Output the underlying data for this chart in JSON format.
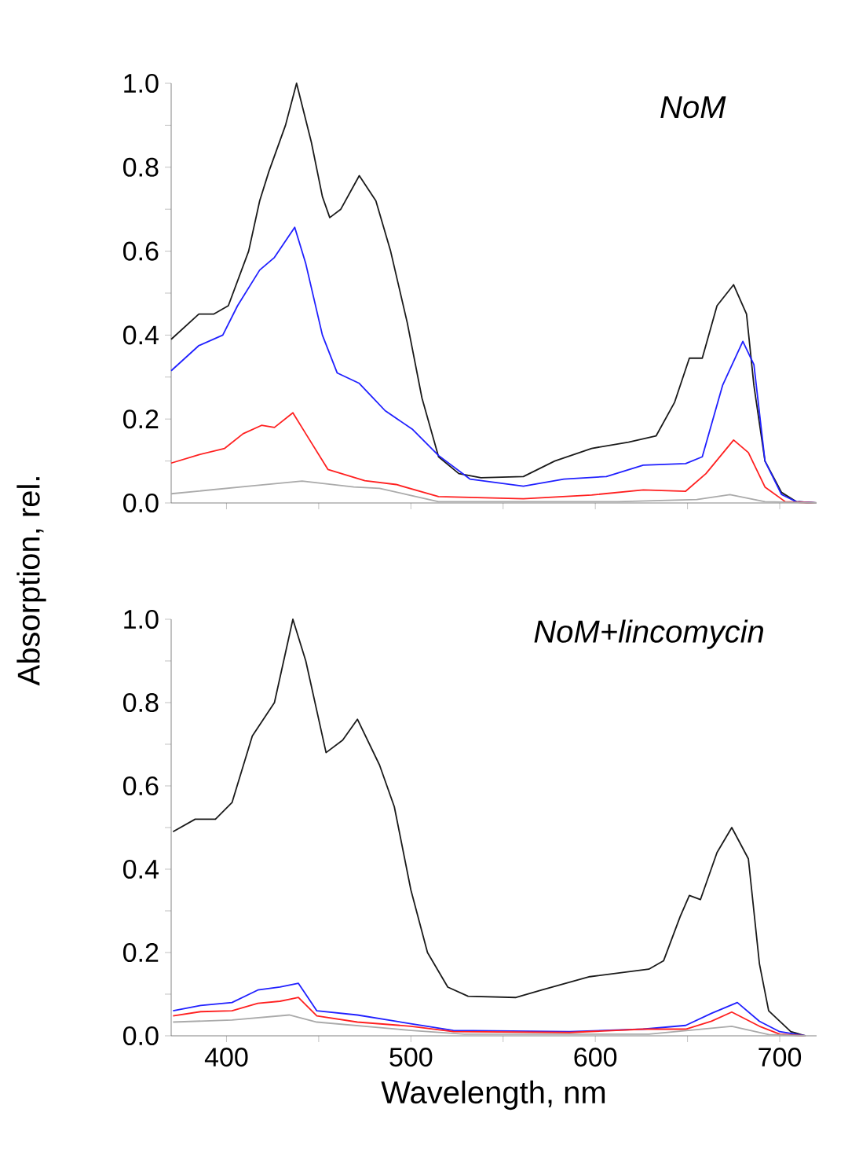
{
  "chart_data": [
    {
      "type": "line",
      "ylabel": "Absorption, rel.",
      "annotations": [
        "NoM"
      ],
      "tick_labels": "y",
      "xlim": [
        370,
        720
      ],
      "ylim": [
        0,
        1.0
      ],
      "xticks": [
        {
          "value": 400,
          "label": null
        },
        {
          "value": 450,
          "label": null
        },
        {
          "value": 500,
          "label": null
        },
        {
          "value": 550,
          "label": null
        },
        {
          "value": 600,
          "label": null
        },
        {
          "value": 650,
          "label": null
        },
        {
          "value": 700,
          "label": null
        }
      ],
      "yticks": [
        {
          "value": 0,
          "label": "0.0"
        },
        {
          "value": 0.1,
          "label": null
        },
        0.2,
        {
          "value": 0.3,
          "label": null
        },
        0.4,
        {
          "value": 0.5,
          "label": null
        },
        0.6,
        {
          "value": 0.7,
          "label": null
        },
        0.8,
        {
          "value": 0.9,
          "label": null
        },
        {
          "value": 1.0,
          "label": "1.0"
        }
      ],
      "series": [
        {
          "color": "#1a1a1a",
          "x": [
            370,
            385,
            393,
            401,
            412,
            418,
            423,
            432,
            438,
            446,
            452,
            456,
            462,
            472,
            481,
            489,
            498,
            506,
            515,
            526,
            538,
            561,
            578,
            598,
            618,
            633,
            643,
            651,
            658,
            666,
            675,
            682,
            686,
            692,
            701,
            709,
            720
          ],
          "values": [
            0.39,
            0.45,
            0.45,
            0.47,
            0.6,
            0.72,
            0.79,
            0.9,
            1.0,
            0.86,
            0.73,
            0.68,
            0.7,
            0.78,
            0.72,
            0.6,
            0.43,
            0.25,
            0.11,
            0.07,
            0.06,
            0.063,
            0.1,
            0.13,
            0.145,
            0.16,
            0.24,
            0.345,
            0.345,
            0.47,
            0.52,
            0.45,
            0.28,
            0.1,
            0.025,
            0.003,
            0
          ]
        },
        {
          "color": "#2020ff",
          "x": [
            370,
            385,
            398,
            406,
            418,
            426,
            437,
            443,
            452,
            460,
            472,
            486,
            501,
            515,
            532,
            561,
            583,
            606,
            626,
            649,
            658,
            669,
            680,
            686,
            692,
            701,
            709,
            720
          ],
          "values": [
            0.315,
            0.375,
            0.4,
            0.47,
            0.555,
            0.585,
            0.657,
            0.57,
            0.4,
            0.31,
            0.285,
            0.22,
            0.175,
            0.113,
            0.057,
            0.04,
            0.057,
            0.063,
            0.09,
            0.094,
            0.11,
            0.28,
            0.385,
            0.33,
            0.1,
            0.02,
            0.003,
            0
          ]
        },
        {
          "color": "#ff2020",
          "x": [
            370,
            385,
            399,
            409,
            419,
            426,
            436,
            443,
            455,
            475,
            492,
            515,
            561,
            598,
            626,
            649,
            660,
            675,
            683,
            692,
            703,
            720
          ],
          "values": [
            0.095,
            0.115,
            0.13,
            0.165,
            0.185,
            0.18,
            0.215,
            0.165,
            0.08,
            0.053,
            0.044,
            0.015,
            0.01,
            0.019,
            0.031,
            0.028,
            0.07,
            0.15,
            0.12,
            0.038,
            0.003,
            0
          ]
        },
        {
          "color": "#aaaaaa",
          "x": [
            370,
            412,
            441,
            455,
            469,
            483,
            498,
            515,
            612,
            655,
            673,
            692,
            720
          ],
          "values": [
            0.022,
            0.04,
            0.052,
            0.045,
            0.038,
            0.035,
            0.02,
            0.003,
            0.003,
            0.008,
            0.02,
            0.003,
            0
          ]
        }
      ]
    },
    {
      "type": "line",
      "xlabel": "Wavelength, nm",
      "annotations": [
        "NoM+lincomycin"
      ],
      "xlim": [
        370,
        720
      ],
      "ylim": [
        0,
        1.0
      ],
      "xticks": [
        400,
        {
          "value": 450,
          "label": null
        },
        500,
        {
          "value": 550,
          "label": null
        },
        600,
        {
          "value": 650,
          "label": null
        },
        700
      ],
      "yticks": [
        {
          "value": 0,
          "label": "0.0"
        },
        {
          "value": 0.1,
          "label": null
        },
        0.2,
        {
          "value": 0.3,
          "label": null
        },
        0.4,
        {
          "value": 0.5,
          "label": null
        },
        0.6,
        {
          "value": 0.7,
          "label": null
        },
        0.8,
        {
          "value": 0.9,
          "label": null
        },
        {
          "value": 1.0,
          "label": "1.0"
        }
      ],
      "series": [
        {
          "color": "#1a1a1a",
          "x": [
            371,
            383,
            394,
            403,
            414,
            426,
            436,
            443,
            454,
            463,
            471,
            483,
            491,
            500,
            509,
            520,
            531,
            557,
            571,
            597,
            629,
            637,
            646,
            651,
            657,
            666,
            674,
            683,
            689,
            694,
            706,
            714
          ],
          "values": [
            0.49,
            0.52,
            0.52,
            0.56,
            0.72,
            0.8,
            1.0,
            0.9,
            0.68,
            0.71,
            0.76,
            0.65,
            0.55,
            0.35,
            0.2,
            0.117,
            0.095,
            0.092,
            0.11,
            0.142,
            0.16,
            0.18,
            0.286,
            0.337,
            0.327,
            0.44,
            0.5,
            0.425,
            0.173,
            0.06,
            0.01,
            0
          ]
        },
        {
          "color": "#2020ff",
          "x": [
            371,
            386,
            403,
            417,
            429,
            439,
            449,
            471,
            500,
            523,
            586,
            626,
            649,
            663,
            677,
            689,
            700,
            714
          ],
          "values": [
            0.06,
            0.073,
            0.08,
            0.11,
            0.117,
            0.126,
            0.06,
            0.05,
            0.029,
            0.013,
            0.01,
            0.016,
            0.025,
            0.054,
            0.08,
            0.035,
            0.01,
            0
          ]
        },
        {
          "color": "#ff2020",
          "x": [
            371,
            386,
            403,
            417,
            429,
            439,
            449,
            471,
            500,
            523,
            586,
            626,
            649,
            663,
            674,
            689,
            700,
            714
          ],
          "values": [
            0.048,
            0.058,
            0.06,
            0.078,
            0.083,
            0.092,
            0.048,
            0.033,
            0.023,
            0.01,
            0.008,
            0.016,
            0.016,
            0.035,
            0.057,
            0.023,
            0.004,
            0
          ]
        },
        {
          "color": "#aaaaaa",
          "x": [
            371,
            403,
            434,
            449,
            500,
            529,
            629,
            674,
            694,
            714
          ],
          "values": [
            0.033,
            0.038,
            0.05,
            0.033,
            0.013,
            0.004,
            0.004,
            0.023,
            0.003,
            0
          ]
        }
      ]
    }
  ]
}
